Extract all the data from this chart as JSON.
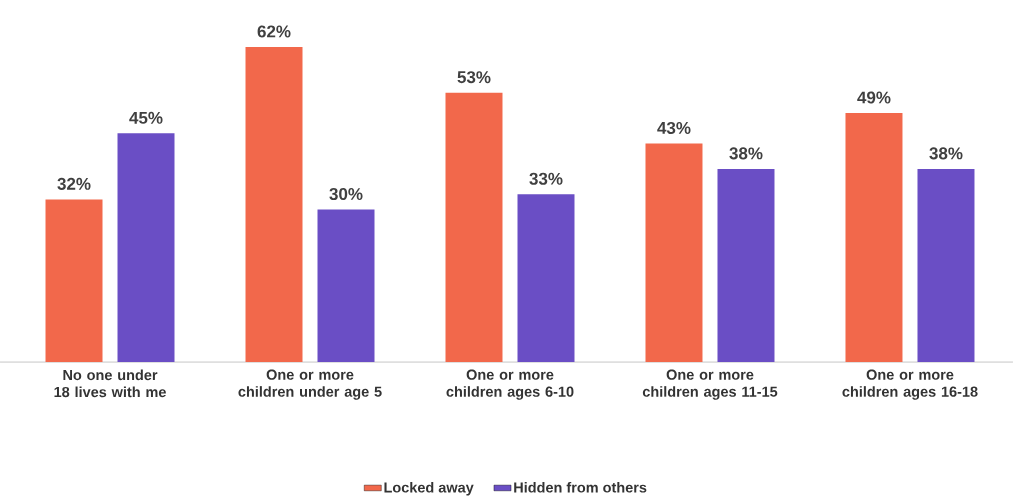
{
  "chart_data": {
    "type": "bar",
    "categories": [
      "No one under 18 lives with me",
      "One or more children under age 5",
      "One or more children ages 6-10",
      "One or more children ages 11-15",
      "One or more children ages 16-18"
    ],
    "series": [
      {
        "name": "Locked away",
        "color": "#f2684b",
        "values": [
          32,
          62,
          53,
          43,
          49
        ],
        "value_labels": [
          "32%",
          "62%",
          "53%",
          "43%",
          "49%"
        ]
      },
      {
        "name": "Hidden from others",
        "color": "#6a4ec5",
        "values": [
          45,
          30,
          33,
          38,
          38
        ],
        "value_labels": [
          "45%",
          "30%",
          "33%",
          "38%",
          "38%"
        ]
      }
    ],
    "legend": "bottom"
  }
}
